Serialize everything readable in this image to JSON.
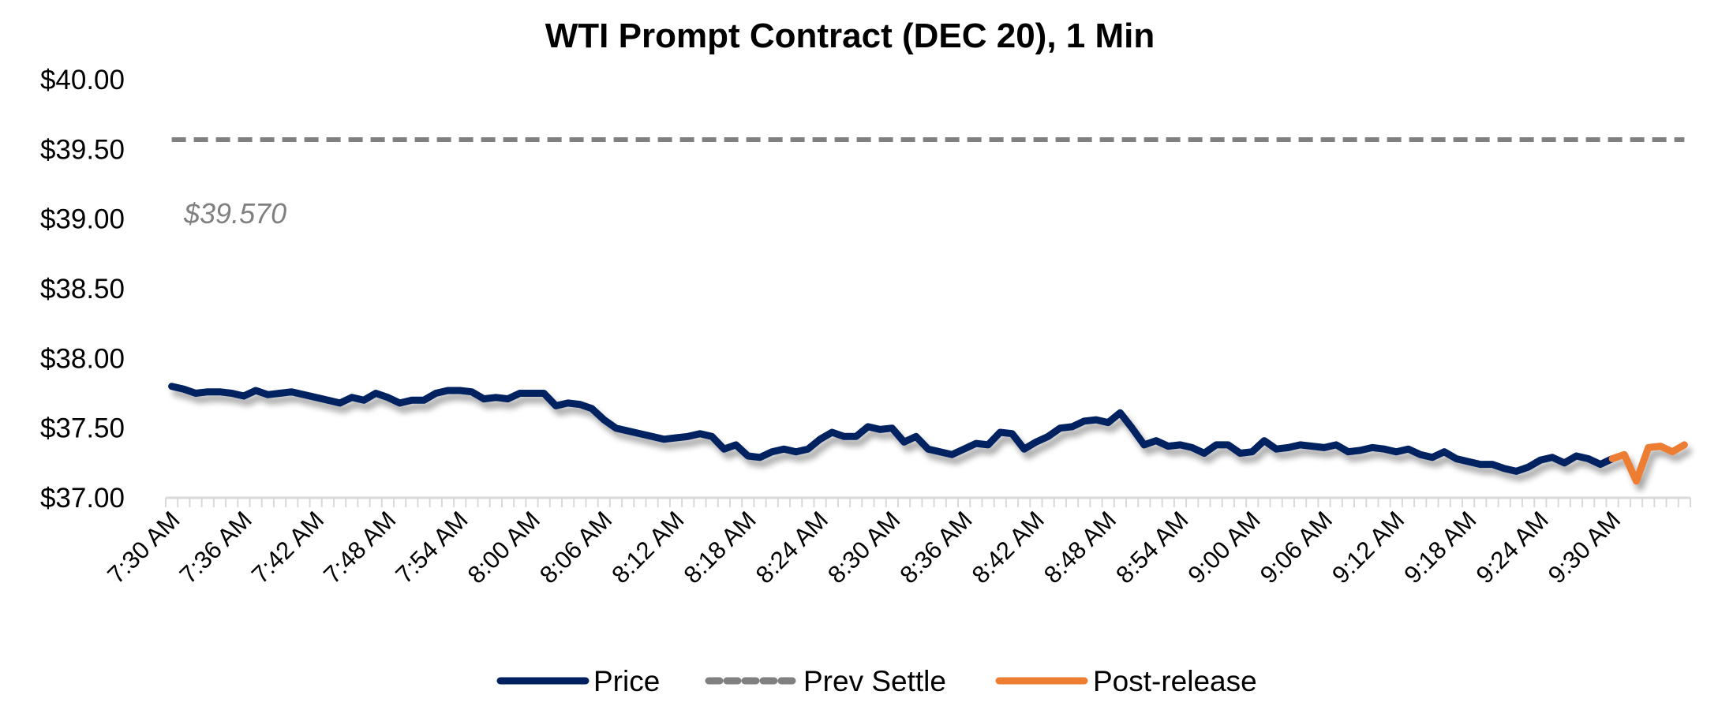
{
  "chart_data": {
    "type": "line",
    "title": "WTI Prompt Contract (DEC 20), 1 Min",
    "xlabel": "",
    "ylabel": "",
    "ylim": [
      37.0,
      40.0
    ],
    "y_ticks": [
      "$37.00",
      "$37.50",
      "$38.00",
      "$38.50",
      "$39.00",
      "$39.50",
      "$40.00"
    ],
    "y_tick_values": [
      37.0,
      37.5,
      38.0,
      38.5,
      39.0,
      39.5,
      40.0
    ],
    "x_start": "7:30 AM",
    "x_interval_minutes": 1,
    "x_count": 127,
    "x_tick_labels": [
      "7:30 AM",
      "7:36 AM",
      "7:42 AM",
      "7:48 AM",
      "7:54 AM",
      "8:00 AM",
      "8:06 AM",
      "8:12 AM",
      "8:18 AM",
      "8:24 AM",
      "8:30 AM",
      "8:36 AM",
      "8:42 AM",
      "8:48 AM",
      "8:54 AM",
      "9:00 AM",
      "9:06 AM",
      "9:12 AM",
      "9:18 AM",
      "9:24 AM",
      "9:30 AM"
    ],
    "x_tick_label_every": 6,
    "grid": false,
    "legend_position": "bottom",
    "series": [
      {
        "name": "Price",
        "color": "#002060",
        "style": "solid",
        "start_index": 0,
        "values": [
          37.8,
          37.78,
          37.75,
          37.76,
          37.76,
          37.75,
          37.73,
          37.77,
          37.74,
          37.75,
          37.76,
          37.74,
          37.72,
          37.7,
          37.68,
          37.72,
          37.7,
          37.75,
          37.72,
          37.68,
          37.7,
          37.7,
          37.75,
          37.77,
          37.77,
          37.76,
          37.71,
          37.72,
          37.71,
          37.75,
          37.75,
          37.75,
          37.66,
          37.68,
          37.67,
          37.64,
          37.56,
          37.5,
          37.48,
          37.46,
          37.44,
          37.42,
          37.43,
          37.44,
          37.46,
          37.44,
          37.35,
          37.38,
          37.3,
          37.29,
          37.33,
          37.35,
          37.33,
          37.35,
          37.42,
          37.47,
          37.44,
          37.44,
          37.51,
          37.49,
          37.5,
          37.4,
          37.44,
          37.35,
          37.33,
          37.31,
          37.35,
          37.39,
          37.38,
          37.47,
          37.46,
          37.35,
          37.4,
          37.44,
          37.5,
          37.51,
          37.55,
          37.56,
          37.54,
          37.61,
          37.5,
          37.38,
          37.41,
          37.37,
          37.38,
          37.36,
          37.32,
          37.38,
          37.38,
          37.32,
          37.33,
          37.41,
          37.35,
          37.36,
          37.38,
          37.37,
          37.36,
          37.38,
          37.33,
          37.34,
          37.36,
          37.35,
          37.33,
          37.35,
          37.31,
          37.29,
          37.33,
          37.28,
          37.26,
          37.24,
          37.24,
          37.21,
          37.19,
          37.22,
          37.27,
          37.29,
          37.25,
          37.3,
          37.28,
          37.24,
          37.28
        ]
      },
      {
        "name": "Prev Settle",
        "color": "#808080",
        "style": "dashed",
        "constant": 39.57
      },
      {
        "name": "Post-release",
        "color": "#ED7D31",
        "style": "solid",
        "start_index": 120,
        "values": [
          37.28,
          37.31,
          37.12,
          37.36,
          37.37,
          37.33,
          37.38
        ]
      }
    ],
    "annotations": [
      {
        "text": "$39.570",
        "color": "#808080"
      }
    ]
  }
}
